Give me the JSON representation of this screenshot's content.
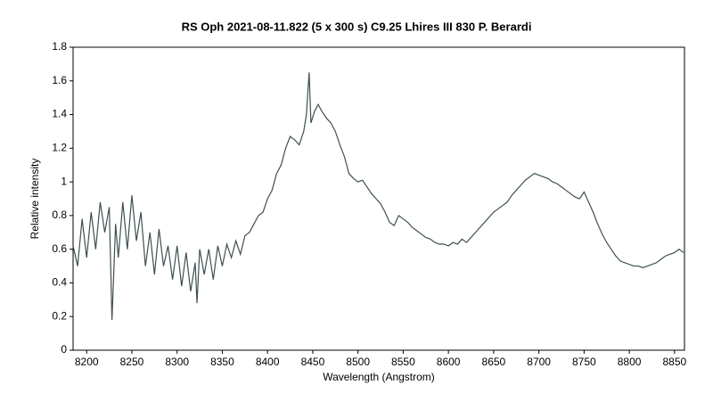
{
  "chart_data": {
    "type": "line",
    "title": "RS Oph  2021-08-11.822  (5 x 300 s)  C9.25  Lhires III 830  P. Berardi",
    "x_label": "Wavelength (Angstrom)",
    "y_label": "Relative intensity",
    "xlim": [
      8185,
      8861
    ],
    "ylim": [
      0,
      1.8
    ],
    "xticks": [
      8200,
      8250,
      8300,
      8350,
      8400,
      8450,
      8500,
      8550,
      8600,
      8650,
      8700,
      8750,
      8800,
      8850
    ],
    "yticks": [
      0,
      0.2,
      0.4,
      0.6,
      0.8,
      1,
      1.2,
      1.4,
      1.6,
      1.8
    ],
    "x": [
      8185,
      8190,
      8195,
      8200,
      8205,
      8210,
      8215,
      8220,
      8225,
      8228,
      8232,
      8235,
      8240,
      8245,
      8250,
      8255,
      8260,
      8265,
      8270,
      8275,
      8280,
      8285,
      8290,
      8295,
      8300,
      8305,
      8310,
      8315,
      8320,
      8322,
      8325,
      8330,
      8335,
      8340,
      8345,
      8350,
      8355,
      8360,
      8365,
      8370,
      8375,
      8380,
      8385,
      8390,
      8395,
      8400,
      8405,
      8410,
      8415,
      8420,
      8425,
      8430,
      8435,
      8440,
      8443,
      8446,
      8448,
      8452,
      8456,
      8460,
      8465,
      8470,
      8475,
      8480,
      8485,
      8490,
      8495,
      8500,
      8505,
      8510,
      8515,
      8520,
      8525,
      8530,
      8535,
      8540,
      8545,
      8550,
      8555,
      8560,
      8565,
      8570,
      8575,
      8580,
      8585,
      8590,
      8595,
      8600,
      8605,
      8610,
      8615,
      8620,
      8625,
      8630,
      8635,
      8640,
      8645,
      8650,
      8655,
      8660,
      8665,
      8670,
      8675,
      8680,
      8685,
      8690,
      8695,
      8700,
      8705,
      8710,
      8715,
      8720,
      8725,
      8730,
      8735,
      8740,
      8745,
      8750,
      8755,
      8760,
      8765,
      8770,
      8775,
      8780,
      8785,
      8790,
      8795,
      8800,
      8805,
      8810,
      8815,
      8820,
      8825,
      8830,
      8835,
      8840,
      8845,
      8850,
      8855,
      8860
    ],
    "series": [
      {
        "color": "#3d5050",
        "values": [
          0.62,
          0.5,
          0.78,
          0.55,
          0.82,
          0.6,
          0.88,
          0.7,
          0.85,
          0.18,
          0.75,
          0.55,
          0.88,
          0.6,
          0.92,
          0.65,
          0.82,
          0.5,
          0.7,
          0.45,
          0.72,
          0.5,
          0.62,
          0.42,
          0.62,
          0.38,
          0.58,
          0.35,
          0.52,
          0.28,
          0.6,
          0.45,
          0.6,
          0.42,
          0.62,
          0.5,
          0.63,
          0.55,
          0.65,
          0.57,
          0.68,
          0.7,
          0.75,
          0.8,
          0.82,
          0.9,
          0.95,
          1.05,
          1.1,
          1.2,
          1.27,
          1.25,
          1.22,
          1.3,
          1.4,
          1.65,
          1.35,
          1.42,
          1.46,
          1.42,
          1.38,
          1.35,
          1.3,
          1.22,
          1.15,
          1.05,
          1.02,
          1.0,
          1.01,
          0.97,
          0.93,
          0.9,
          0.87,
          0.82,
          0.76,
          0.74,
          0.8,
          0.78,
          0.76,
          0.73,
          0.71,
          0.69,
          0.67,
          0.66,
          0.64,
          0.63,
          0.63,
          0.62,
          0.64,
          0.63,
          0.66,
          0.64,
          0.67,
          0.7,
          0.73,
          0.76,
          0.79,
          0.82,
          0.84,
          0.86,
          0.88,
          0.92,
          0.95,
          0.98,
          1.01,
          1.03,
          1.05,
          1.04,
          1.03,
          1.02,
          1.0,
          0.99,
          0.97,
          0.95,
          0.93,
          0.91,
          0.9,
          0.94,
          0.88,
          0.82,
          0.75,
          0.69,
          0.64,
          0.6,
          0.56,
          0.53,
          0.52,
          0.51,
          0.5,
          0.5,
          0.49,
          0.5,
          0.51,
          0.52,
          0.54,
          0.56,
          0.57,
          0.58,
          0.6,
          0.58
        ]
      }
    ]
  }
}
